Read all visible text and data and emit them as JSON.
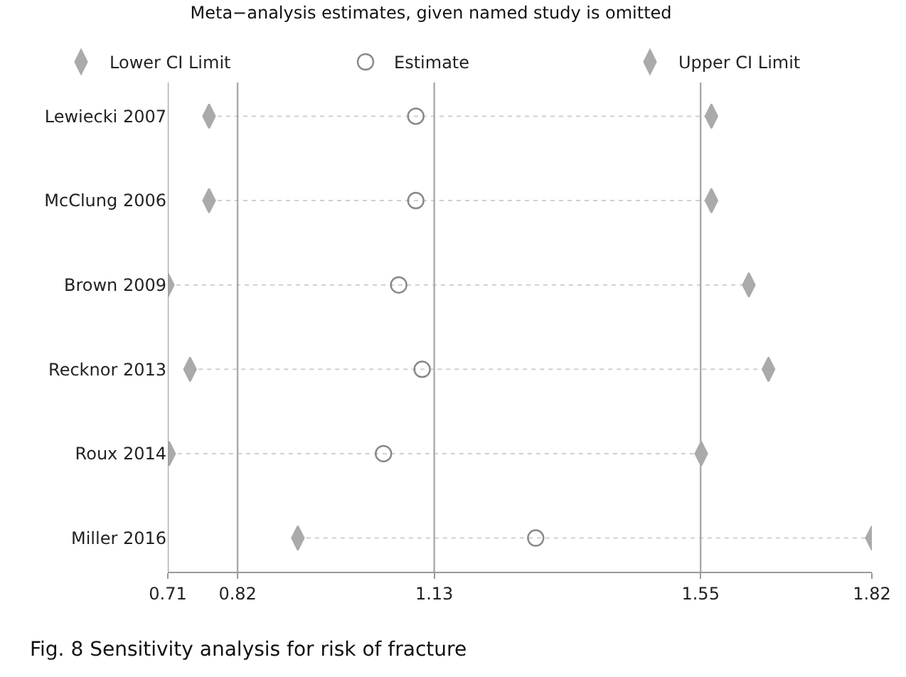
{
  "chart_data": {
    "type": "scatter",
    "orientation": "horizontal",
    "title": "Meta−analysis estimates, given named study is omitted",
    "categories": [
      "Lewiecki 2007",
      "McClung 2006",
      "Brown 2009",
      "Recknor 2013",
      "Roux 2014",
      "Miller 2016"
    ],
    "series": [
      {
        "name": "Lower CI Limit",
        "color": "#aaaaaa",
        "marker": "diamond",
        "values": [
          0.775,
          0.775,
          0.71,
          0.745,
          0.712,
          0.915
        ]
      },
      {
        "name": "Estimate",
        "color": "#888888",
        "marker": "circle",
        "values": [
          1.101,
          1.101,
          1.074,
          1.111,
          1.05,
          1.29
        ]
      },
      {
        "name": "Upper CI Limit",
        "color": "#aaaaaa",
        "marker": "diamond",
        "values": [
          1.567,
          1.567,
          1.626,
          1.657,
          1.551,
          1.82
        ]
      }
    ],
    "xlim": [
      0.71,
      1.82
    ],
    "xticks": [
      0.71,
      0.82,
      1.13,
      1.55,
      1.82
    ],
    "ref_lines": [
      {
        "axis": "x",
        "value": 0.82,
        "color": "#aaaaaa"
      },
      {
        "axis": "x",
        "value": 1.13,
        "color": "#aaaaaa"
      },
      {
        "axis": "x",
        "value": 1.55,
        "color": "#aaaaaa"
      }
    ],
    "legend": "top",
    "annotations": [
      "Fig. 8 Sensitivity analysis for risk of fracture"
    ]
  }
}
